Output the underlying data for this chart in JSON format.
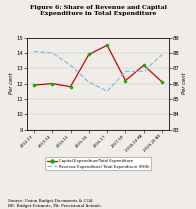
{
  "title": "Figure 6: Share of Revenue and Capital\nExpenditure in Total Expenditure",
  "categories": [
    "2012-13",
    "2013-14",
    "2014-15",
    "2015-16",
    "2016-17",
    "2017-18",
    "2018-19 PA",
    "2019-20 BE"
  ],
  "capital_exp": [
    11.9,
    12.0,
    11.8,
    13.9,
    14.5,
    12.2,
    13.2,
    12.1
  ],
  "revenue_exp": [
    88.1,
    88.0,
    87.2,
    86.1,
    85.5,
    86.8,
    86.8,
    87.9
  ],
  "left_ylim": [
    9,
    15
  ],
  "right_ylim": [
    83,
    89
  ],
  "left_yticks": [
    9,
    10,
    11,
    12,
    13,
    14,
    15
  ],
  "right_yticks": [
    83,
    84,
    85,
    86,
    87,
    88,
    89
  ],
  "left_ylabel": "Per cent",
  "right_ylabel": "Per cent",
  "line1_color": "#cc0000",
  "line1_marker": "o",
  "line1_marker_color": "#00bb00",
  "line2_color": "#88bbdd",
  "line2_style": "--",
  "legend1": "Capital Expenditure/Total Expenditure",
  "legend2": "Revenue Expenditure/ Total Expenditure (RHS)",
  "source_text": "Source: Union Budget Documents & CGA\nBE: Budget Estimate, PA: Provisional Actuals.",
  "bg_color": "#f0ede8",
  "plot_bg": "#f0ede8",
  "title_fontsize": 4.5,
  "tick_fontsize": 3.8,
  "xlabel_fontsize": 2.9,
  "ylabel_fontsize": 3.8,
  "legend_fontsize": 2.8,
  "source_fontsize": 2.9
}
